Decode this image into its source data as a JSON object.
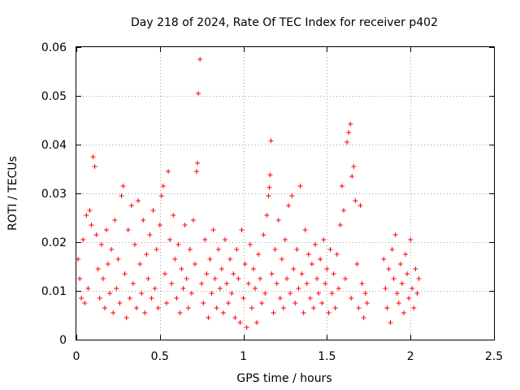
{
  "chart_data": {
    "type": "scatter",
    "title": "Day 218 of 2024, Rate Of TEC Index for receiver p402",
    "xlabel": "GPS time / hours",
    "ylabel": "ROTI / TECUs",
    "xlim": [
      0,
      2.5
    ],
    "ylim": [
      0,
      0.06
    ],
    "x_ticks": [
      0,
      0.5,
      1,
      1.5,
      2,
      2.5
    ],
    "x_tick_labels": [
      "0",
      "0.5",
      "1",
      "1.5",
      "2",
      "2.5"
    ],
    "y_ticks": [
      0,
      0.01,
      0.02,
      0.03,
      0.04,
      0.05,
      0.06
    ],
    "y_tick_labels": [
      "0",
      "0.01",
      "0.02",
      "0.03",
      "0.04",
      "0.05",
      "0.06"
    ],
    "grid": true,
    "series": [
      {
        "name": "ROTI",
        "marker": "+",
        "color": "#ff0000",
        "points": [
          [
            0.01,
            0.0165
          ],
          [
            0.02,
            0.0125
          ],
          [
            0.03,
            0.0085
          ],
          [
            0.04,
            0.0205
          ],
          [
            0.05,
            0.0075
          ],
          [
            0.06,
            0.0255
          ],
          [
            0.07,
            0.0105
          ],
          [
            0.08,
            0.0265
          ],
          [
            0.09,
            0.0235
          ],
          [
            0.1,
            0.0375
          ],
          [
            0.11,
            0.0355
          ],
          [
            0.12,
            0.0215
          ],
          [
            0.13,
            0.0145
          ],
          [
            0.14,
            0.0085
          ],
          [
            0.15,
            0.0195
          ],
          [
            0.16,
            0.0125
          ],
          [
            0.17,
            0.0065
          ],
          [
            0.18,
            0.0225
          ],
          [
            0.19,
            0.0155
          ],
          [
            0.2,
            0.0095
          ],
          [
            0.21,
            0.0185
          ],
          [
            0.22,
            0.0055
          ],
          [
            0.23,
            0.0245
          ],
          [
            0.24,
            0.0105
          ],
          [
            0.25,
            0.0165
          ],
          [
            0.26,
            0.0075
          ],
          [
            0.27,
            0.0295
          ],
          [
            0.28,
            0.0315
          ],
          [
            0.29,
            0.0135
          ],
          [
            0.3,
            0.0045
          ],
          [
            0.31,
            0.0225
          ],
          [
            0.32,
            0.0085
          ],
          [
            0.33,
            0.0275
          ],
          [
            0.34,
            0.0115
          ],
          [
            0.35,
            0.0195
          ],
          [
            0.36,
            0.0065
          ],
          [
            0.37,
            0.0285
          ],
          [
            0.38,
            0.0155
          ],
          [
            0.39,
            0.0095
          ],
          [
            0.4,
            0.0245
          ],
          [
            0.41,
            0.0055
          ],
          [
            0.42,
            0.0175
          ],
          [
            0.43,
            0.0125
          ],
          [
            0.44,
            0.0215
          ],
          [
            0.45,
            0.0085
          ],
          [
            0.46,
            0.0265
          ],
          [
            0.47,
            0.0105
          ],
          [
            0.48,
            0.0185
          ],
          [
            0.49,
            0.0065
          ],
          [
            0.5,
            0.0235
          ],
          [
            0.51,
            0.0295
          ],
          [
            0.52,
            0.0315
          ],
          [
            0.53,
            0.0135
          ],
          [
            0.54,
            0.0075
          ],
          [
            0.55,
            0.0345
          ],
          [
            0.56,
            0.0205
          ],
          [
            0.57,
            0.0115
          ],
          [
            0.58,
            0.0255
          ],
          [
            0.59,
            0.0165
          ],
          [
            0.6,
            0.0085
          ],
          [
            0.61,
            0.0195
          ],
          [
            0.62,
            0.0055
          ],
          [
            0.63,
            0.0145
          ],
          [
            0.64,
            0.0105
          ],
          [
            0.65,
            0.0235
          ],
          [
            0.66,
            0.0125
          ],
          [
            0.67,
            0.0065
          ],
          [
            0.68,
            0.0185
          ],
          [
            0.69,
            0.0095
          ],
          [
            0.7,
            0.0245
          ],
          [
            0.71,
            0.0155
          ],
          [
            0.72,
            0.0345
          ],
          [
            0.725,
            0.0362
          ],
          [
            0.73,
            0.0505
          ],
          [
            0.74,
            0.0575
          ],
          [
            0.75,
            0.0115
          ],
          [
            0.76,
            0.0075
          ],
          [
            0.77,
            0.0205
          ],
          [
            0.78,
            0.0135
          ],
          [
            0.79,
            0.0045
          ],
          [
            0.8,
            0.0165
          ],
          [
            0.81,
            0.0095
          ],
          [
            0.82,
            0.0225
          ],
          [
            0.83,
            0.0125
          ],
          [
            0.84,
            0.0065
          ],
          [
            0.85,
            0.0185
          ],
          [
            0.86,
            0.0105
          ],
          [
            0.87,
            0.0145
          ],
          [
            0.88,
            0.0055
          ],
          [
            0.89,
            0.0205
          ],
          [
            0.9,
            0.0115
          ],
          [
            0.91,
            0.0075
          ],
          [
            0.92,
            0.0165
          ],
          [
            0.93,
            0.0095
          ],
          [
            0.94,
            0.0135
          ],
          [
            0.95,
            0.0045
          ],
          [
            0.96,
            0.0185
          ],
          [
            0.97,
            0.0125
          ],
          [
            0.98,
            0.0035
          ],
          [
            0.99,
            0.0225
          ],
          [
            1.0,
            0.0085
          ],
          [
            1.01,
            0.0155
          ],
          [
            1.02,
            0.0025
          ],
          [
            1.03,
            0.0115
          ],
          [
            1.04,
            0.0195
          ],
          [
            1.05,
            0.0065
          ],
          [
            1.06,
            0.0145
          ],
          [
            1.07,
            0.0105
          ],
          [
            1.08,
            0.0035
          ],
          [
            1.09,
            0.0175
          ],
          [
            1.1,
            0.0125
          ],
          [
            1.11,
            0.0075
          ],
          [
            1.12,
            0.0215
          ],
          [
            1.13,
            0.0095
          ],
          [
            1.14,
            0.0255
          ],
          [
            1.15,
            0.0295
          ],
          [
            1.155,
            0.0312
          ],
          [
            1.16,
            0.0338
          ],
          [
            1.165,
            0.0408
          ],
          [
            1.17,
            0.0135
          ],
          [
            1.18,
            0.0055
          ],
          [
            1.19,
            0.0185
          ],
          [
            1.2,
            0.0115
          ],
          [
            1.21,
            0.0245
          ],
          [
            1.22,
            0.0085
          ],
          [
            1.23,
            0.0165
          ],
          [
            1.24,
            0.0065
          ],
          [
            1.25,
            0.0205
          ],
          [
            1.26,
            0.0125
          ],
          [
            1.27,
            0.0275
          ],
          [
            1.28,
            0.0095
          ],
          [
            1.29,
            0.0295
          ],
          [
            1.3,
            0.0145
          ],
          [
            1.31,
            0.0075
          ],
          [
            1.32,
            0.0185
          ],
          [
            1.33,
            0.0105
          ],
          [
            1.34,
            0.0315
          ],
          [
            1.35,
            0.0135
          ],
          [
            1.36,
            0.0055
          ],
          [
            1.37,
            0.0225
          ],
          [
            1.38,
            0.0115
          ],
          [
            1.39,
            0.0175
          ],
          [
            1.4,
            0.0085
          ],
          [
            1.41,
            0.0155
          ],
          [
            1.42,
            0.0065
          ],
          [
            1.43,
            0.0195
          ],
          [
            1.44,
            0.0125
          ],
          [
            1.45,
            0.0095
          ],
          [
            1.46,
            0.0165
          ],
          [
            1.47,
            0.0075
          ],
          [
            1.48,
            0.0205
          ],
          [
            1.49,
            0.0115
          ],
          [
            1.5,
            0.0145
          ],
          [
            1.51,
            0.0055
          ],
          [
            1.52,
            0.0185
          ],
          [
            1.53,
            0.0095
          ],
          [
            1.54,
            0.0135
          ],
          [
            1.55,
            0.0065
          ],
          [
            1.56,
            0.0175
          ],
          [
            1.57,
            0.0105
          ],
          [
            1.58,
            0.0235
          ],
          [
            1.59,
            0.0315
          ],
          [
            1.6,
            0.0265
          ],
          [
            1.61,
            0.0125
          ],
          [
            1.62,
            0.0405
          ],
          [
            1.63,
            0.0425
          ],
          [
            1.64,
            0.0442
          ],
          [
            1.645,
            0.0085
          ],
          [
            1.65,
            0.0335
          ],
          [
            1.66,
            0.0355
          ],
          [
            1.67,
            0.0285
          ],
          [
            1.68,
            0.0155
          ],
          [
            1.69,
            0.0065
          ],
          [
            1.7,
            0.0275
          ],
          [
            1.71,
            0.0115
          ],
          [
            1.72,
            0.0045
          ],
          [
            1.73,
            0.0095
          ],
          [
            1.74,
            0.0075
          ],
          [
            1.84,
            0.0165
          ],
          [
            1.85,
            0.0105
          ],
          [
            1.86,
            0.0065
          ],
          [
            1.87,
            0.0145
          ],
          [
            1.88,
            0.0035
          ],
          [
            1.89,
            0.0185
          ],
          [
            1.9,
            0.0125
          ],
          [
            1.91,
            0.0215
          ],
          [
            1.92,
            0.0095
          ],
          [
            1.93,
            0.0075
          ],
          [
            1.94,
            0.0155
          ],
          [
            1.95,
            0.0115
          ],
          [
            1.96,
            0.0055
          ],
          [
            1.97,
            0.0175
          ],
          [
            1.98,
            0.0135
          ],
          [
            1.99,
            0.0085
          ],
          [
            2.0,
            0.0205
          ],
          [
            2.01,
            0.0105
          ],
          [
            2.02,
            0.0065
          ],
          [
            2.03,
            0.0145
          ],
          [
            2.04,
            0.0095
          ],
          [
            2.05,
            0.0125
          ]
        ]
      }
    ]
  }
}
